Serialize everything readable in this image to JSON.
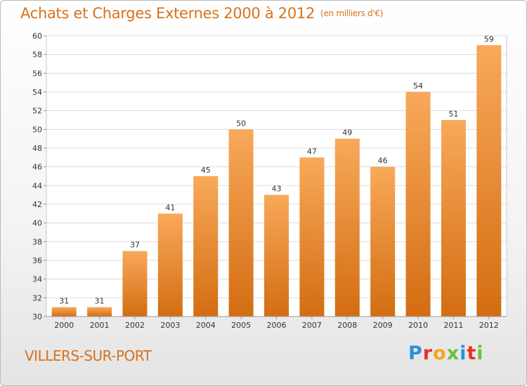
{
  "header": {
    "title": "Achats et Charges Externes 2000 à 2012",
    "subtitle": "(en milliers d'€)"
  },
  "footer": {
    "commune": "VILLERS-SUR-PORT",
    "logo_text": "Proxiti",
    "logo_letters": [
      {
        "ch": "P",
        "color": "#2d8fd8"
      },
      {
        "ch": "r",
        "color": "#e9332a"
      },
      {
        "ch": "o",
        "color": "#f5a51b"
      },
      {
        "ch": "x",
        "color": "#6abf3f"
      },
      {
        "ch": "i",
        "color": "#2d8fd8"
      },
      {
        "ch": "t",
        "color": "#e9332a"
      },
      {
        "ch": "i",
        "color": "#6abf3f"
      }
    ]
  },
  "chart_data": {
    "type": "bar",
    "title": "Achats et Charges Externes 2000 à 2012",
    "subtitle": "(en milliers d'€)",
    "categories": [
      "2000",
      "2001",
      "2002",
      "2003",
      "2004",
      "2005",
      "2006",
      "2007",
      "2008",
      "2009",
      "2010",
      "2011",
      "2012"
    ],
    "values": [
      31,
      31,
      37,
      41,
      45,
      50,
      43,
      47,
      49,
      46,
      54,
      51,
      59
    ],
    "ylim": [
      30,
      60
    ],
    "yticks": [
      30,
      32,
      34,
      36,
      38,
      40,
      42,
      44,
      46,
      48,
      50,
      52,
      54,
      56,
      58,
      60
    ],
    "grid": true,
    "bar_color_top": "#f8a95a",
    "bar_color_bottom": "#d36d12",
    "accent_color": "#d8721c"
  }
}
